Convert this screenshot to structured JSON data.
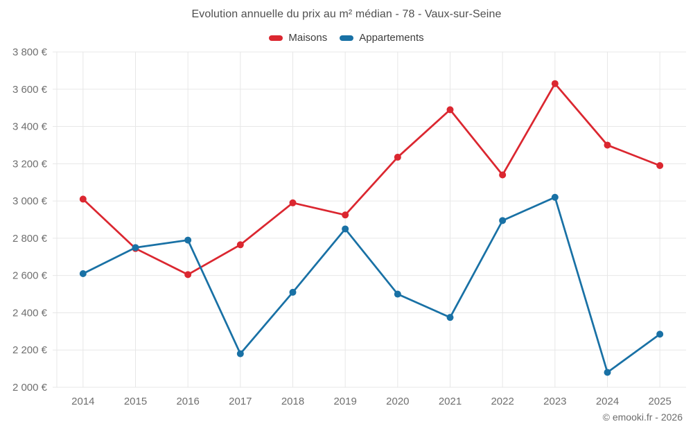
{
  "title": "Evolution annuelle du prix au m² médian - 78 - Vaux-sur-Seine",
  "footer": "© emooki.fr - 2026",
  "colors": {
    "maisons": "#db2730",
    "appartements": "#1971a5",
    "grid": "#e7e7e7",
    "tick_label": "#6f6f6f",
    "title": "#4f4f4f"
  },
  "legend": [
    {
      "id": "maisons",
      "label": "Maisons",
      "color": "#db2730"
    },
    {
      "id": "appartements",
      "label": "Appartements",
      "color": "#1971a5"
    }
  ],
  "chart_data": {
    "type": "line",
    "title": "Evolution annuelle du prix au m² médian - 78 - Vaux-sur-Seine",
    "categories": [
      "2014",
      "2015",
      "2016",
      "2017",
      "2018",
      "2019",
      "2020",
      "2021",
      "2022",
      "2023",
      "2024",
      "2025"
    ],
    "series": [
      {
        "name": "Maisons",
        "color": "#db2730",
        "values": [
          3010,
          2745,
          2605,
          2765,
          2990,
          2925,
          3235,
          3490,
          3140,
          3630,
          3300,
          3190
        ]
      },
      {
        "name": "Appartements",
        "color": "#1971a5",
        "values": [
          2610,
          2750,
          2790,
          2180,
          2510,
          2850,
          2500,
          2375,
          2895,
          3020,
          2080,
          2285
        ]
      }
    ],
    "xlabel": "",
    "ylabel": "",
    "ylim": [
      2000,
      3800
    ],
    "ytick_step": 200,
    "ytick_suffix": " €",
    "grid": true,
    "legend_position": "top",
    "markers": true
  }
}
